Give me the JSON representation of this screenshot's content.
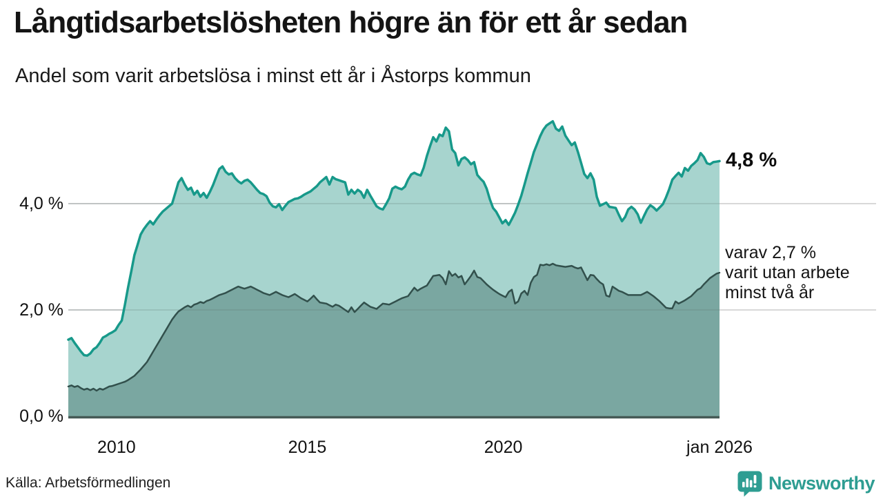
{
  "header": {
    "title": "Långtidsarbetslösheten högre än för ett år sedan",
    "subtitle": "Andel som varit arbetslösa i minst ett år i Åstorps kommun"
  },
  "annotations": {
    "end_value": "4,8 %",
    "sub": [
      "varav 2,7 %",
      "varit utan arbete",
      "minst två år"
    ]
  },
  "footer": {
    "source": "Källa: Arbetsförmedlingen",
    "brand": "Newsworthy"
  },
  "colors": {
    "series1_line": "#17998a",
    "series1_fill": "#a7d4ce",
    "series2_line": "#32504c",
    "series2_fill": "#7aa7a1",
    "grid": "#d8d8d8",
    "grid_overlay": "rgba(90,110,108,0.25)",
    "axis": "#465a56",
    "brand_teal": "#2e9d92"
  },
  "chart_data": {
    "type": "area",
    "title": "Andel som varit arbetslösa i minst ett år i Åstorps kommun",
    "frequency": "monthly",
    "ylim": [
      0,
      5.8
    ],
    "grid": "horizontal",
    "y_ticks": [
      {
        "label": "0,0 %",
        "value": 0
      },
      {
        "label": "2,0 %",
        "value": 2
      },
      {
        "label": "4,0 %",
        "value": 4
      }
    ],
    "x_ticks": [
      {
        "label": "2010",
        "f": 0.074
      },
      {
        "label": "2015",
        "f": 0.367
      },
      {
        "label": "2020",
        "f": 0.668
      },
      {
        "label": "jan 2026",
        "f": 1.0
      }
    ],
    "series": [
      {
        "name": "Arbetslösa minst ett år",
        "end_value_label": "4,8 %",
        "end_value": 4.8,
        "values": [
          1.44,
          1.47,
          1.38,
          1.3,
          1.22,
          1.15,
          1.14,
          1.18,
          1.26,
          1.3,
          1.38,
          1.48,
          1.51,
          1.55,
          1.58,
          1.62,
          1.72,
          1.8,
          2.1,
          2.42,
          2.72,
          3.03,
          3.22,
          3.42,
          3.52,
          3.6,
          3.67,
          3.61,
          3.7,
          3.78,
          3.85,
          3.9,
          3.95,
          4.0,
          4.2,
          4.4,
          4.48,
          4.36,
          4.26,
          4.3,
          4.17,
          4.24,
          4.13,
          4.2,
          4.11,
          4.22,
          4.35,
          4.5,
          4.65,
          4.7,
          4.6,
          4.55,
          4.57,
          4.48,
          4.42,
          4.38,
          4.43,
          4.45,
          4.4,
          4.33,
          4.26,
          4.2,
          4.18,
          4.14,
          4.02,
          3.95,
          3.93,
          3.99,
          3.88,
          3.96,
          4.03,
          4.06,
          4.09,
          4.1,
          4.13,
          4.17,
          4.2,
          4.23,
          4.28,
          4.33,
          4.4,
          4.45,
          4.5,
          4.36,
          4.5,
          4.46,
          4.44,
          4.42,
          4.4,
          4.17,
          4.26,
          4.19,
          4.26,
          4.22,
          4.11,
          4.26,
          4.15,
          4.05,
          3.95,
          3.91,
          3.89,
          3.99,
          4.1,
          4.28,
          4.32,
          4.29,
          4.27,
          4.32,
          4.45,
          4.55,
          4.58,
          4.55,
          4.53,
          4.68,
          4.9,
          5.08,
          5.25,
          5.17,
          5.3,
          5.27,
          5.43,
          5.36,
          5.02,
          4.95,
          4.72,
          4.84,
          4.87,
          4.82,
          4.74,
          4.78,
          4.54,
          4.47,
          4.41,
          4.28,
          4.08,
          3.92,
          3.85,
          3.74,
          3.63,
          3.69,
          3.6,
          3.71,
          3.83,
          3.98,
          4.15,
          4.36,
          4.57,
          4.77,
          4.97,
          5.12,
          5.27,
          5.39,
          5.47,
          5.51,
          5.55,
          5.41,
          5.37,
          5.45,
          5.28,
          5.19,
          5.1,
          5.15,
          4.97,
          4.77,
          4.56,
          4.48,
          4.57,
          4.45,
          4.13,
          3.96,
          3.99,
          4.02,
          3.94,
          3.93,
          3.92,
          3.79,
          3.67,
          3.75,
          3.89,
          3.94,
          3.89,
          3.8,
          3.64,
          3.77,
          3.89,
          3.97,
          3.93,
          3.87,
          3.93,
          3.99,
          4.12,
          4.27,
          4.45,
          4.52,
          4.58,
          4.51,
          4.67,
          4.62,
          4.71,
          4.76,
          4.82,
          4.95,
          4.88,
          4.76,
          4.74,
          4.78,
          4.79,
          4.8
        ]
      },
      {
        "name": "varav arbetslösa minst två år",
        "end_value_label": "2,7 %",
        "end_value": 2.7,
        "values": [
          0.56,
          0.58,
          0.55,
          0.57,
          0.53,
          0.5,
          0.52,
          0.49,
          0.52,
          0.48,
          0.52,
          0.5,
          0.53,
          0.56,
          0.57,
          0.59,
          0.61,
          0.63,
          0.65,
          0.68,
          0.72,
          0.76,
          0.82,
          0.88,
          0.95,
          1.02,
          1.12,
          1.22,
          1.32,
          1.42,
          1.52,
          1.62,
          1.72,
          1.82,
          1.9,
          1.97,
          2.01,
          2.05,
          2.08,
          2.05,
          2.1,
          2.12,
          2.15,
          2.13,
          2.17,
          2.19,
          2.22,
          2.25,
          2.28,
          2.3,
          2.32,
          2.35,
          2.38,
          2.41,
          2.44,
          2.42,
          2.4,
          2.42,
          2.44,
          2.41,
          2.38,
          2.35,
          2.32,
          2.3,
          2.28,
          2.31,
          2.34,
          2.31,
          2.28,
          2.26,
          2.24,
          2.27,
          2.3,
          2.26,
          2.22,
          2.19,
          2.16,
          2.21,
          2.27,
          2.2,
          2.14,
          2.13,
          2.12,
          2.09,
          2.06,
          2.1,
          2.08,
          2.04,
          2.0,
          1.96,
          2.05,
          1.96,
          2.02,
          2.08,
          2.14,
          2.1,
          2.06,
          2.04,
          2.02,
          2.07,
          2.12,
          2.11,
          2.1,
          2.13,
          2.16,
          2.19,
          2.22,
          2.24,
          2.26,
          2.34,
          2.42,
          2.36,
          2.4,
          2.43,
          2.46,
          2.55,
          2.64,
          2.65,
          2.66,
          2.6,
          2.48,
          2.73,
          2.64,
          2.68,
          2.61,
          2.64,
          2.48,
          2.56,
          2.64,
          2.74,
          2.62,
          2.6,
          2.54,
          2.48,
          2.43,
          2.38,
          2.34,
          2.3,
          2.27,
          2.24,
          2.34,
          2.38,
          2.12,
          2.16,
          2.31,
          2.36,
          2.28,
          2.51,
          2.62,
          2.66,
          2.85,
          2.84,
          2.86,
          2.84,
          2.87,
          2.84,
          2.83,
          2.82,
          2.81,
          2.82,
          2.83,
          2.8,
          2.78,
          2.8,
          2.68,
          2.56,
          2.66,
          2.65,
          2.58,
          2.52,
          2.48,
          2.27,
          2.25,
          2.44,
          2.4,
          2.36,
          2.34,
          2.31,
          2.28,
          2.28,
          2.28,
          2.28,
          2.28,
          2.31,
          2.34,
          2.3,
          2.26,
          2.21,
          2.16,
          2.1,
          2.04,
          2.03,
          2.03,
          2.16,
          2.12,
          2.15,
          2.18,
          2.22,
          2.26,
          2.32,
          2.38,
          2.41,
          2.48,
          2.54,
          2.6,
          2.64,
          2.68,
          2.7
        ]
      }
    ]
  }
}
